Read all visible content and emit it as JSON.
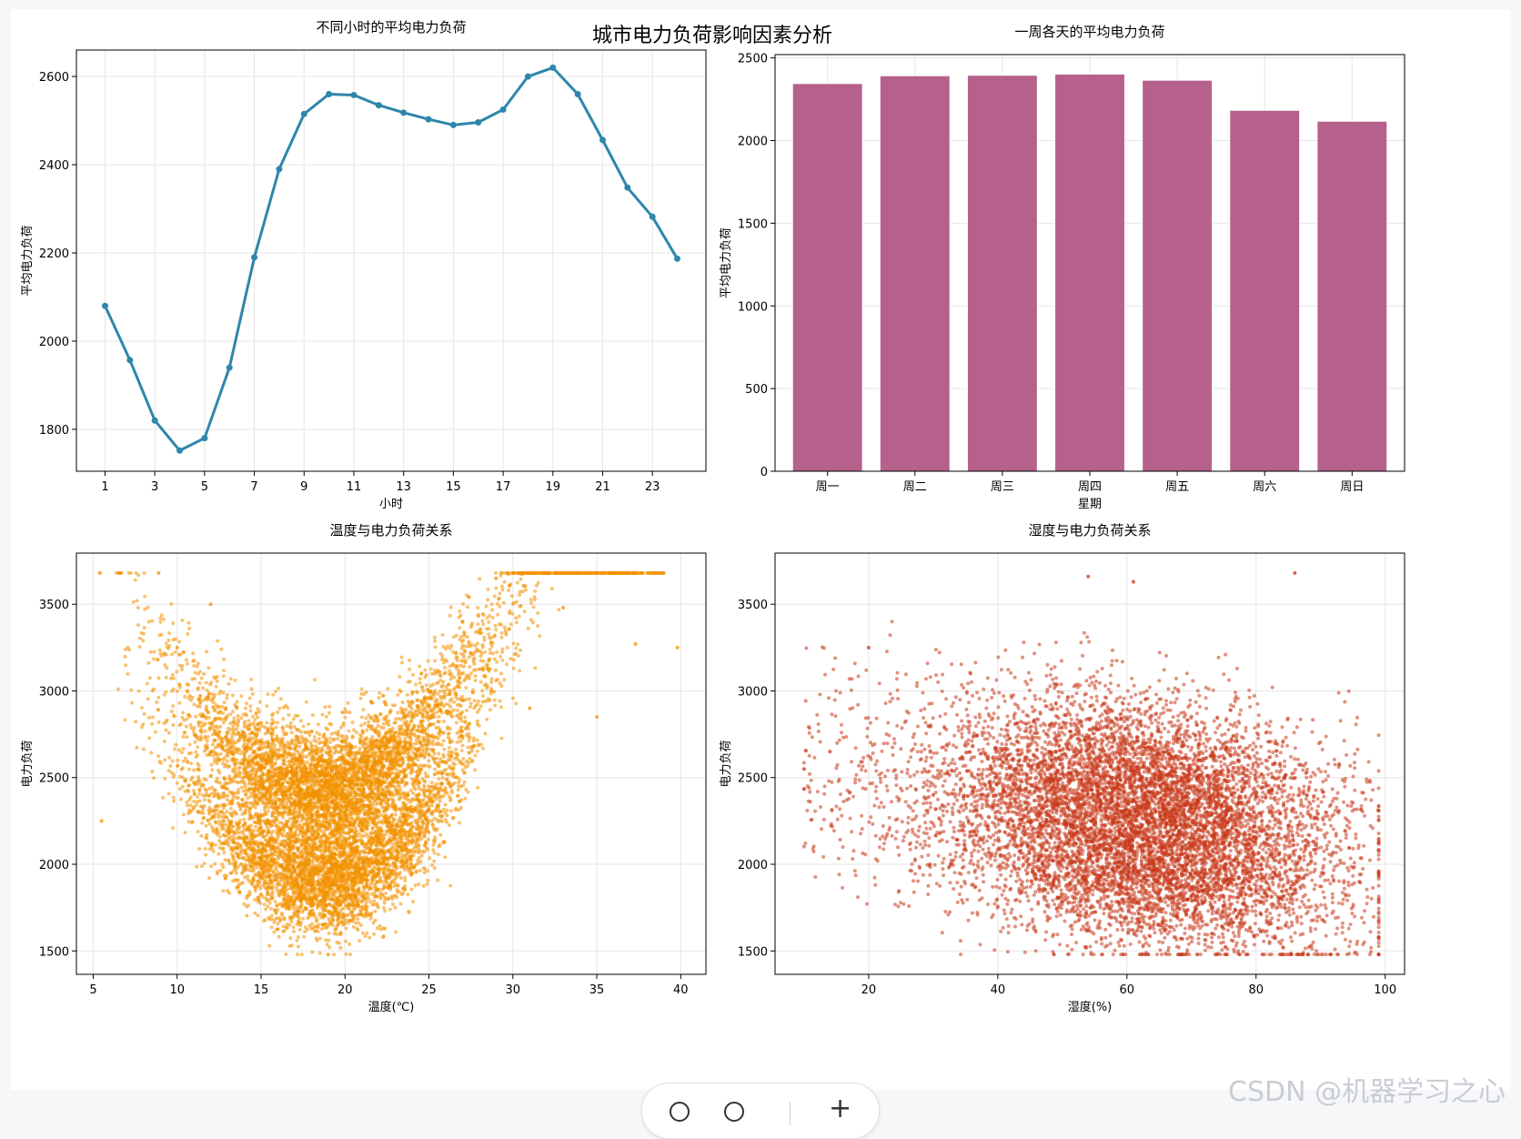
{
  "figure": {
    "suptitle": "城市电力负荷影响因素分析"
  },
  "colors": {
    "line": "#2e86ab",
    "bar": "#b5618b",
    "scatter_temp": "#f39200",
    "scatter_hum": "#c9381a",
    "grid": "#e6e6e6",
    "axis": "#000000"
  },
  "watermark": "CSDN @机器学习之心",
  "chart_data": [
    {
      "id": "hourly",
      "type": "line",
      "title": "不同小时的平均电力负荷",
      "xlabel": "小时",
      "ylabel": "平均电力负荷",
      "x": [
        1,
        2,
        3,
        4,
        5,
        6,
        7,
        8,
        9,
        10,
        11,
        12,
        13,
        14,
        15,
        16,
        17,
        18,
        19,
        20,
        21,
        22,
        23,
        24
      ],
      "values": [
        2080,
        1957,
        1820,
        1752,
        1780,
        1940,
        2190,
        2390,
        2515,
        2560,
        2558,
        2535,
        2518,
        2503,
        2490,
        2496,
        2525,
        2600,
        2620,
        2560,
        2456,
        2348,
        2282,
        2187
      ],
      "xticks": [
        1,
        3,
        5,
        7,
        9,
        11,
        13,
        15,
        17,
        19,
        21,
        23
      ],
      "yticks": [
        1800,
        2000,
        2200,
        2400,
        2600
      ],
      "xlim": [
        -0.15,
        25.15
      ],
      "ylim": [
        1705,
        2660
      ],
      "grid": true
    },
    {
      "id": "weekday",
      "type": "bar",
      "title": "一周各天的平均电力负荷",
      "xlabel": "星期",
      "ylabel": "平均电力负荷",
      "categories": [
        "周一",
        "周二",
        "周三",
        "周四",
        "周五",
        "周六",
        "周日"
      ],
      "values": [
        2345,
        2392,
        2395,
        2402,
        2365,
        2183,
        2117
      ],
      "yticks": [
        0,
        500,
        1000,
        1500,
        2000,
        2500
      ],
      "ylim": [
        0,
        2520
      ],
      "grid": true
    },
    {
      "id": "temperature",
      "type": "scatter",
      "title": "温度与电力负荷关系",
      "xlabel": "温度(℃)",
      "ylabel": "电力负荷",
      "xticks": [
        5,
        10,
        15,
        20,
        25,
        30,
        35,
        40
      ],
      "yticks": [
        1500,
        2000,
        2500,
        3000,
        3500
      ],
      "xlim": [
        4,
        41.5
      ],
      "ylim": [
        1365,
        3795
      ],
      "grid": true,
      "sample_points": [
        [
          5.5,
          2250
        ],
        [
          8.9,
          3680
        ],
        [
          10,
          3250
        ],
        [
          12,
          3500
        ],
        [
          14,
          2600
        ],
        [
          17,
          2520
        ],
        [
          19,
          1480
        ],
        [
          20,
          2300
        ],
        [
          22,
          2150
        ],
        [
          25,
          2800
        ],
        [
          27,
          3400
        ],
        [
          29,
          3650
        ],
        [
          31,
          2900
        ],
        [
          33,
          3480
        ],
        [
          35,
          2850
        ],
        [
          37.3,
          3270
        ],
        [
          39.8,
          3250
        ]
      ]
    },
    {
      "id": "humidity",
      "type": "scatter",
      "title": "湿度与电力负荷关系",
      "xlabel": "湿度(%)",
      "ylabel": "电力负荷",
      "xticks": [
        20,
        40,
        60,
        80,
        100
      ],
      "yticks": [
        1500,
        2000,
        2500,
        3000,
        3500
      ],
      "xlim": [
        5.5,
        103
      ],
      "ylim": [
        1365,
        3795
      ],
      "grid": true,
      "sample_points": [
        [
          10,
          2550
        ],
        [
          14,
          2650
        ],
        [
          20,
          3250
        ],
        [
          30,
          2400
        ],
        [
          45,
          2600
        ],
        [
          54,
          3660
        ],
        [
          61,
          3630
        ],
        [
          65,
          2500
        ],
        [
          71,
          2200
        ],
        [
          79,
          1900
        ],
        [
          86,
          3680
        ],
        [
          88,
          1480
        ],
        [
          96,
          1900
        ],
        [
          99,
          1950
        ]
      ]
    }
  ]
}
